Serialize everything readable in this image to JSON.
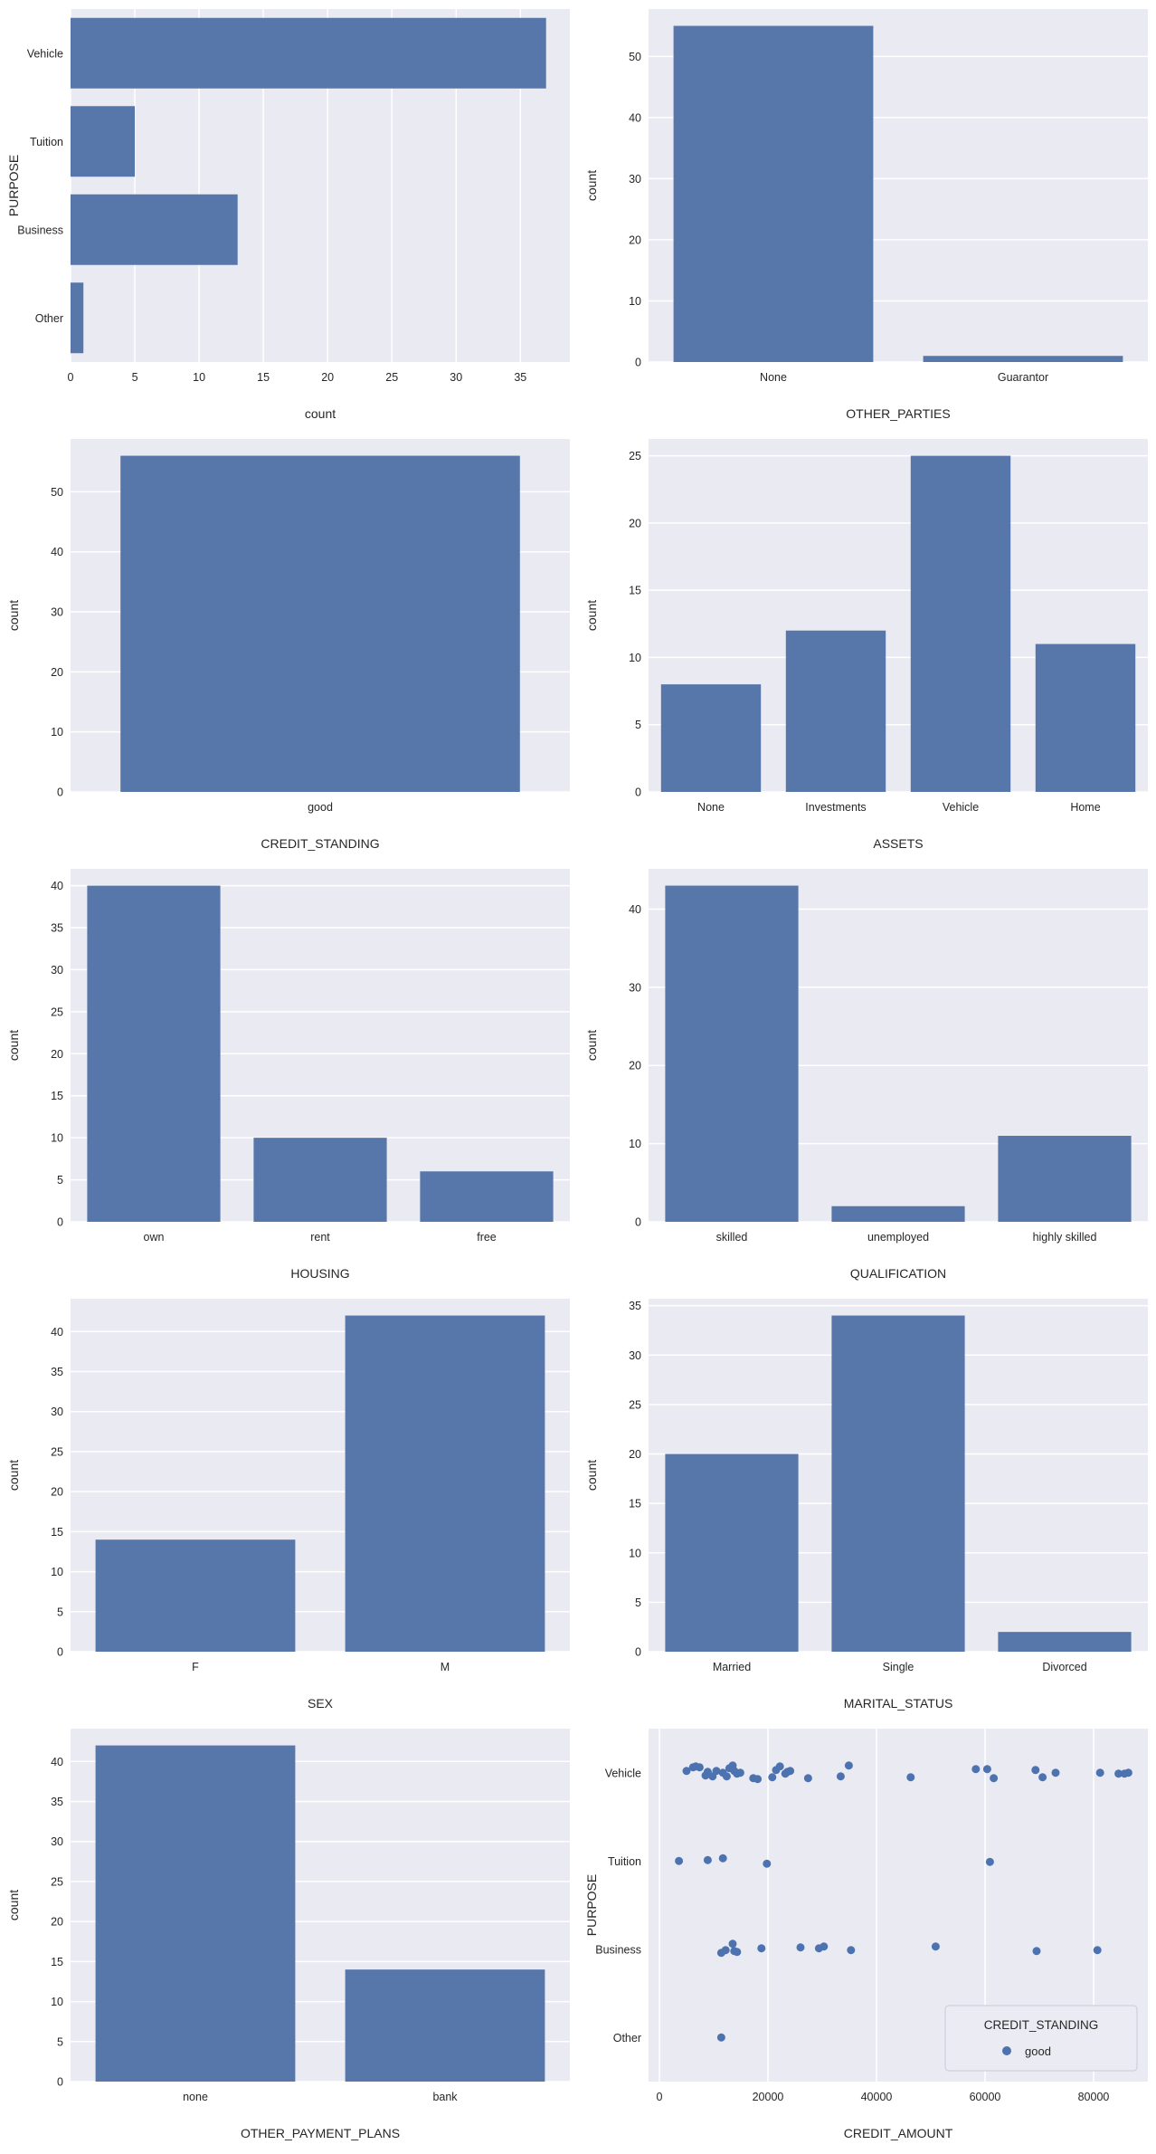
{
  "figure": {
    "background": "#ffffff",
    "axes_background": "#eaeaf2",
    "grid_color": "#ffffff",
    "bar_color": "#5777ab",
    "point_color": "#4c72b0",
    "text_color": "#262626",
    "legend_background": "#ebebf3",
    "legend_border": "#d0d0dc"
  },
  "chart_data": [
    {
      "id": "purpose",
      "type": "barh",
      "title": "",
      "ylabel": "PURPOSE",
      "xlabel": "count",
      "categories": [
        "Vehicle",
        "Tuition",
        "Business",
        "Other"
      ],
      "values": [
        37,
        5,
        13,
        1
      ],
      "xticks": [
        0,
        5,
        10,
        15,
        20,
        25,
        30,
        35
      ],
      "xlim": [
        0,
        38.85
      ],
      "grid": "vertical",
      "legend_position": "none"
    },
    {
      "id": "other_parties",
      "type": "bar",
      "title": "",
      "xlabel": "OTHER_PARTIES",
      "ylabel": "count",
      "categories": [
        "None",
        "Guarantor"
      ],
      "values": [
        55,
        1
      ],
      "yticks": [
        0,
        10,
        20,
        30,
        40,
        50
      ],
      "ylim": [
        0,
        57.75
      ],
      "grid": "horizontal",
      "legend_position": "none"
    },
    {
      "id": "credit_standing",
      "type": "bar",
      "title": "",
      "xlabel": "CREDIT_STANDING",
      "ylabel": "count",
      "categories": [
        "good"
      ],
      "values": [
        56
      ],
      "yticks": [
        0,
        10,
        20,
        30,
        40,
        50
      ],
      "ylim": [
        0,
        58.8
      ],
      "grid": "horizontal",
      "legend_position": "none"
    },
    {
      "id": "assets",
      "type": "bar",
      "title": "",
      "xlabel": "ASSETS",
      "ylabel": "count",
      "categories": [
        "None",
        "Investments",
        "Vehicle",
        "Home"
      ],
      "values": [
        8,
        12,
        25,
        11
      ],
      "yticks": [
        0,
        5,
        10,
        15,
        20,
        25
      ],
      "ylim": [
        0,
        26.25
      ],
      "grid": "horizontal",
      "legend_position": "none"
    },
    {
      "id": "housing",
      "type": "bar",
      "title": "",
      "xlabel": "HOUSING",
      "ylabel": "count",
      "categories": [
        "own",
        "rent",
        "free"
      ],
      "values": [
        40,
        10,
        6
      ],
      "yticks": [
        0,
        5,
        10,
        15,
        20,
        25,
        30,
        35,
        40
      ],
      "ylim": [
        0,
        42
      ],
      "grid": "horizontal",
      "legend_position": "none"
    },
    {
      "id": "qualification",
      "type": "bar",
      "title": "",
      "xlabel": "QUALIFICATION",
      "ylabel": "count",
      "categories": [
        "skilled",
        "unemployed",
        "highly skilled"
      ],
      "values": [
        43,
        2,
        11
      ],
      "yticks": [
        0,
        10,
        20,
        30,
        40
      ],
      "ylim": [
        0,
        45.15
      ],
      "grid": "horizontal",
      "legend_position": "none"
    },
    {
      "id": "sex",
      "type": "bar",
      "title": "",
      "xlabel": "SEX",
      "ylabel": "count",
      "categories": [
        "F",
        "M"
      ],
      "values": [
        14,
        42
      ],
      "yticks": [
        0,
        5,
        10,
        15,
        20,
        25,
        30,
        35,
        40
      ],
      "ylim": [
        0,
        44.1
      ],
      "grid": "horizontal",
      "legend_position": "none"
    },
    {
      "id": "marital_status",
      "type": "bar",
      "title": "",
      "xlabel": "MARITAL_STATUS",
      "ylabel": "count",
      "categories": [
        "Married",
        "Single",
        "Divorced"
      ],
      "values": [
        20,
        34,
        2
      ],
      "yticks": [
        0,
        5,
        10,
        15,
        20,
        25,
        30,
        35
      ],
      "ylim": [
        0,
        35.7
      ],
      "grid": "horizontal",
      "legend_position": "none"
    },
    {
      "id": "other_payment_plans",
      "type": "bar",
      "title": "",
      "xlabel": "OTHER_PAYMENT_PLANS",
      "ylabel": "count",
      "categories": [
        "none",
        "bank"
      ],
      "values": [
        42,
        14
      ],
      "yticks": [
        0,
        5,
        10,
        15,
        20,
        25,
        30,
        35,
        40
      ],
      "ylim": [
        0,
        44.1
      ],
      "grid": "horizontal",
      "legend_position": "none"
    },
    {
      "id": "credit_amount_by_purpose",
      "type": "scatter",
      "title": "",
      "xlabel": "CREDIT_AMOUNT",
      "ylabel": "PURPOSE",
      "categories": [
        "Vehicle",
        "Tuition",
        "Business",
        "Other"
      ],
      "xticks": [
        0,
        20000,
        40000,
        60000,
        80000
      ],
      "xtick_labels": [
        "0",
        "20000",
        "40000",
        "60000",
        "80000"
      ],
      "xlim": [
        -2000,
        90000
      ],
      "grid": "vertical",
      "legend_position": "lower right",
      "legend": {
        "title": "CREDIT_STANDING",
        "items": [
          {
            "label": "good"
          }
        ]
      },
      "points": {
        "Vehicle": [
          [
            5000,
            -2
          ],
          [
            6200,
            -6
          ],
          [
            6700,
            -7
          ],
          [
            7400,
            -6
          ],
          [
            8500,
            3
          ],
          [
            8900,
            -1
          ],
          [
            9800,
            4
          ],
          [
            10500,
            -2
          ],
          [
            11700,
            0
          ],
          [
            12400,
            4
          ],
          [
            12900,
            -5
          ],
          [
            13500,
            -8
          ],
          [
            13800,
            -2
          ],
          [
            14300,
            1
          ],
          [
            14900,
            0
          ],
          [
            17300,
            6
          ],
          [
            18100,
            7
          ],
          [
            20800,
            5
          ],
          [
            21500,
            -3
          ],
          [
            22200,
            -7
          ],
          [
            23200,
            1
          ],
          [
            23600,
            -1
          ],
          [
            24100,
            -2
          ],
          [
            27400,
            6
          ],
          [
            33400,
            4
          ],
          [
            34900,
            -8
          ],
          [
            46300,
            5
          ],
          [
            58300,
            -4
          ],
          [
            60400,
            -4
          ],
          [
            61600,
            6
          ],
          [
            69300,
            -3
          ],
          [
            70600,
            5
          ],
          [
            73000,
            0
          ],
          [
            81200,
            0
          ],
          [
            84600,
            1
          ],
          [
            85700,
            1
          ],
          [
            86400,
            0
          ]
        ],
        "Tuition": [
          [
            3600,
            0
          ],
          [
            8900,
            -1
          ],
          [
            11700,
            -3
          ],
          [
            19800,
            3
          ],
          [
            60900,
            1
          ]
        ],
        "Business": [
          [
            11400,
            4
          ],
          [
            12200,
            1
          ],
          [
            13500,
            -6
          ],
          [
            13800,
            2
          ],
          [
            14300,
            3
          ],
          [
            18800,
            -1
          ],
          [
            26000,
            -2
          ],
          [
            29400,
            -1
          ],
          [
            30300,
            -3
          ],
          [
            35300,
            1
          ],
          [
            50900,
            -3
          ],
          [
            69500,
            2
          ],
          [
            80700,
            1
          ]
        ],
        "Other": [
          [
            11400,
            0
          ]
        ]
      }
    }
  ]
}
